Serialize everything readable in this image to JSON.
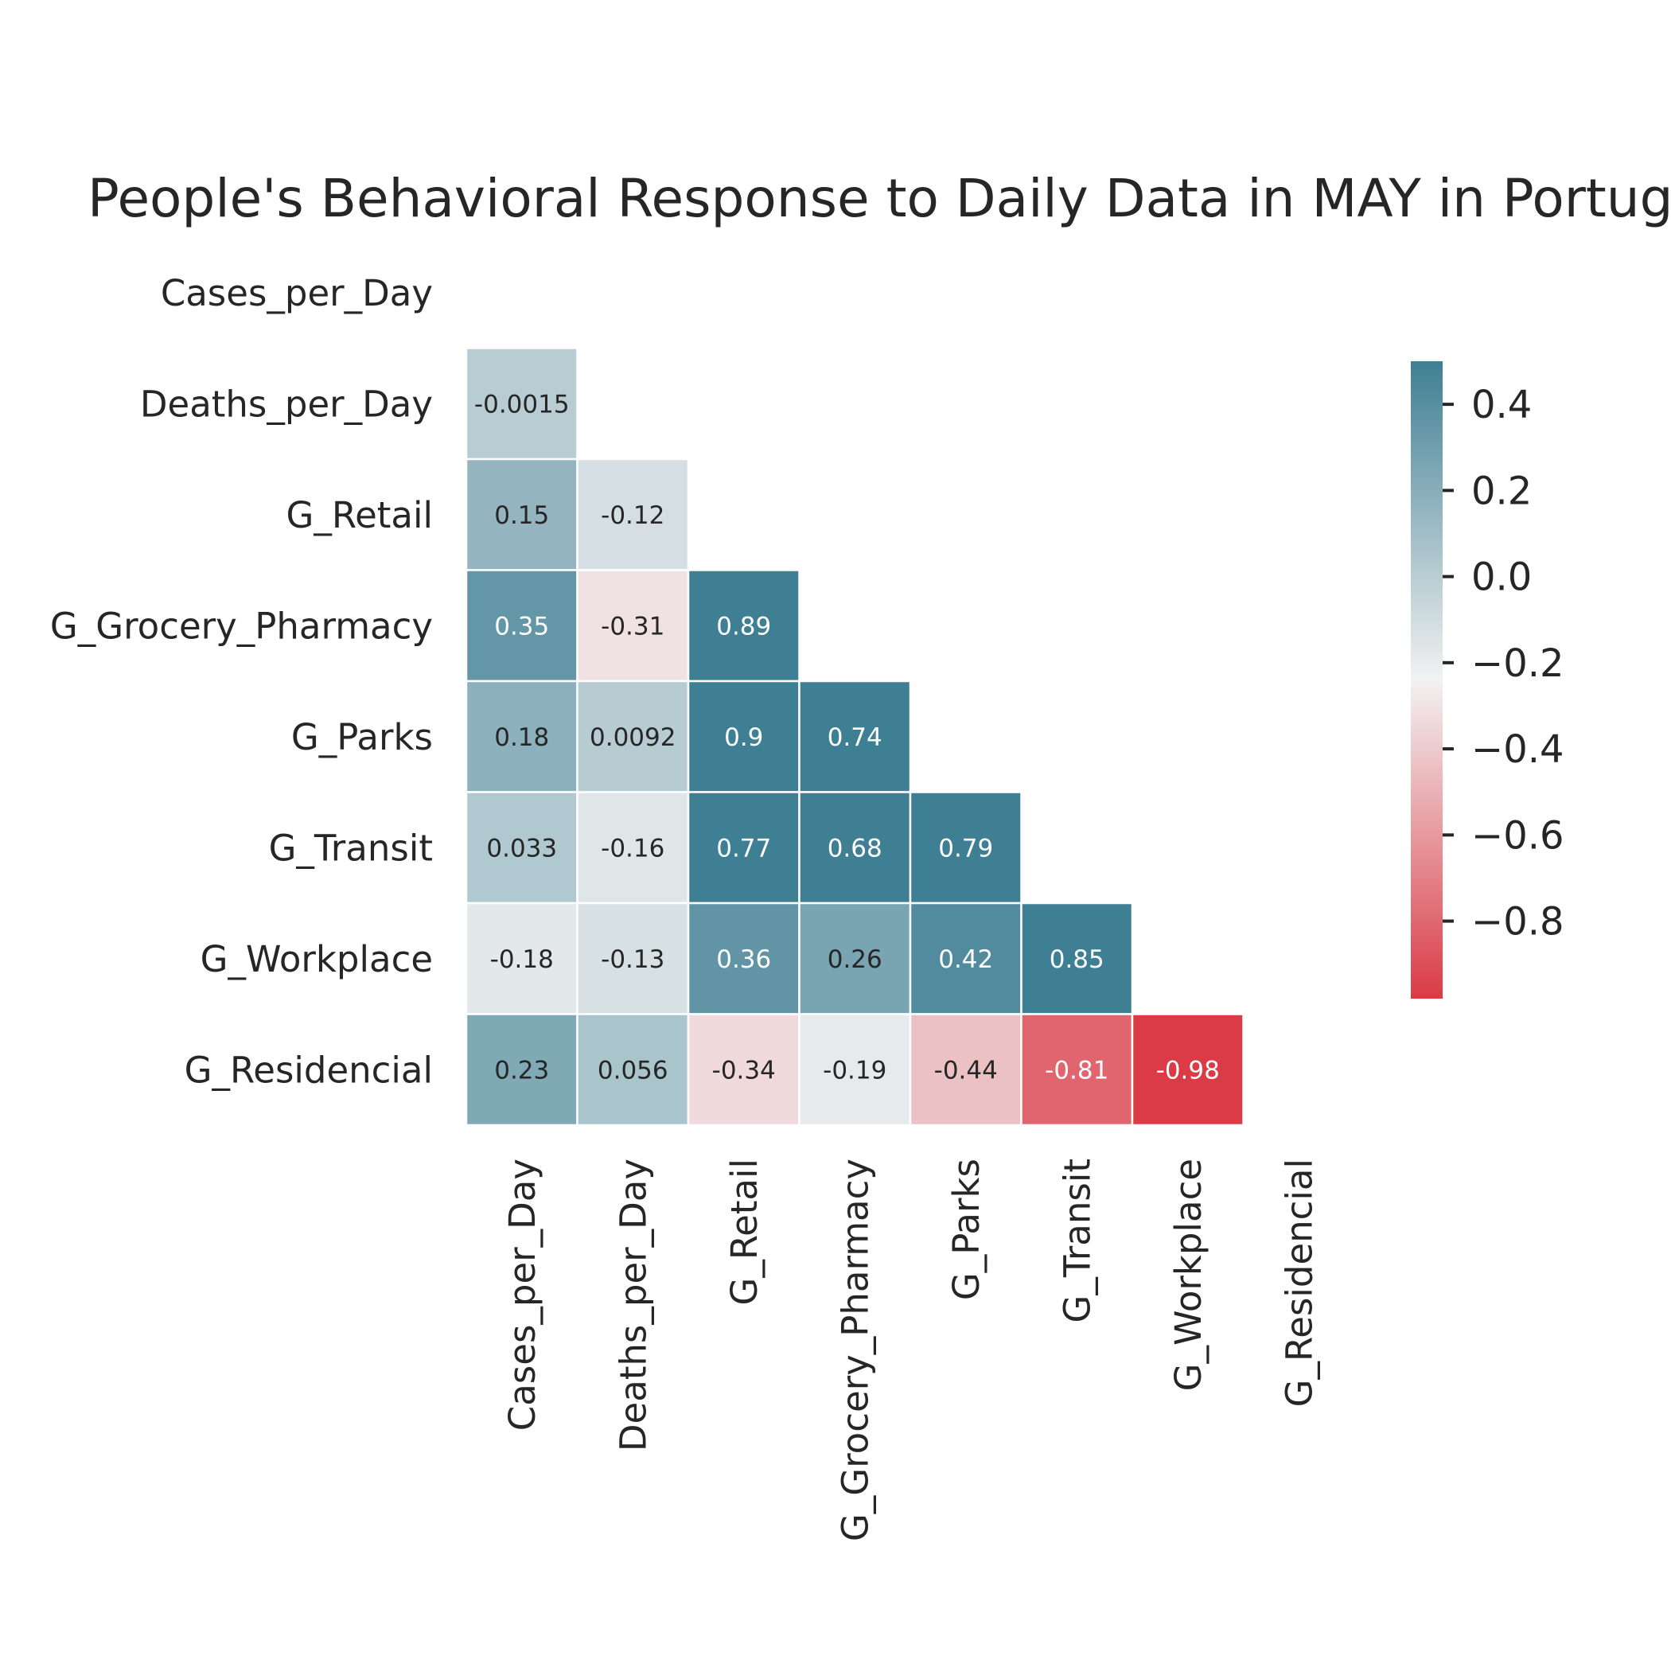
{
  "chart_data": {
    "type": "heatmap",
    "title": "People's Behavioral Response to Daily Data in MAY in Portugal",
    "variables": [
      "Cases_per_Day",
      "Deaths_per_Day",
      "G_Retail",
      "G_Grocery_Pharmacy",
      "G_Parks",
      "G_Transit",
      "G_Workplace",
      "G_Residencial"
    ],
    "matrix_lower": [
      [],
      [
        "-0.0015"
      ],
      [
        "0.15",
        "-0.12"
      ],
      [
        "0.35",
        "-0.31",
        "0.89"
      ],
      [
        "0.18",
        "0.0092",
        "0.9",
        "0.74"
      ],
      [
        "0.033",
        "-0.16",
        "0.77",
        "0.68",
        "0.79"
      ],
      [
        "-0.18",
        "-0.13",
        "0.36",
        "0.26",
        "0.42",
        "0.85"
      ],
      [
        "0.23",
        "0.056",
        "-0.34",
        "-0.19",
        "-0.44",
        "-0.81",
        "-0.98"
      ]
    ],
    "mask": "upper triangle incl. diagonal",
    "colorbar": {
      "ticks": [
        "0.4",
        "0.2",
        "0.0",
        "−0.2",
        "−0.4",
        "−0.6",
        "−0.8"
      ],
      "tick_values": [
        0.4,
        0.2,
        0.0,
        -0.2,
        -0.4,
        -0.6,
        -0.8
      ],
      "vmin": -0.98,
      "vmax": 0.5,
      "center": -0.24
    },
    "colors": {
      "low": "#da3b46",
      "mid": "#f2f2f2",
      "high": "#3f7f93"
    }
  }
}
